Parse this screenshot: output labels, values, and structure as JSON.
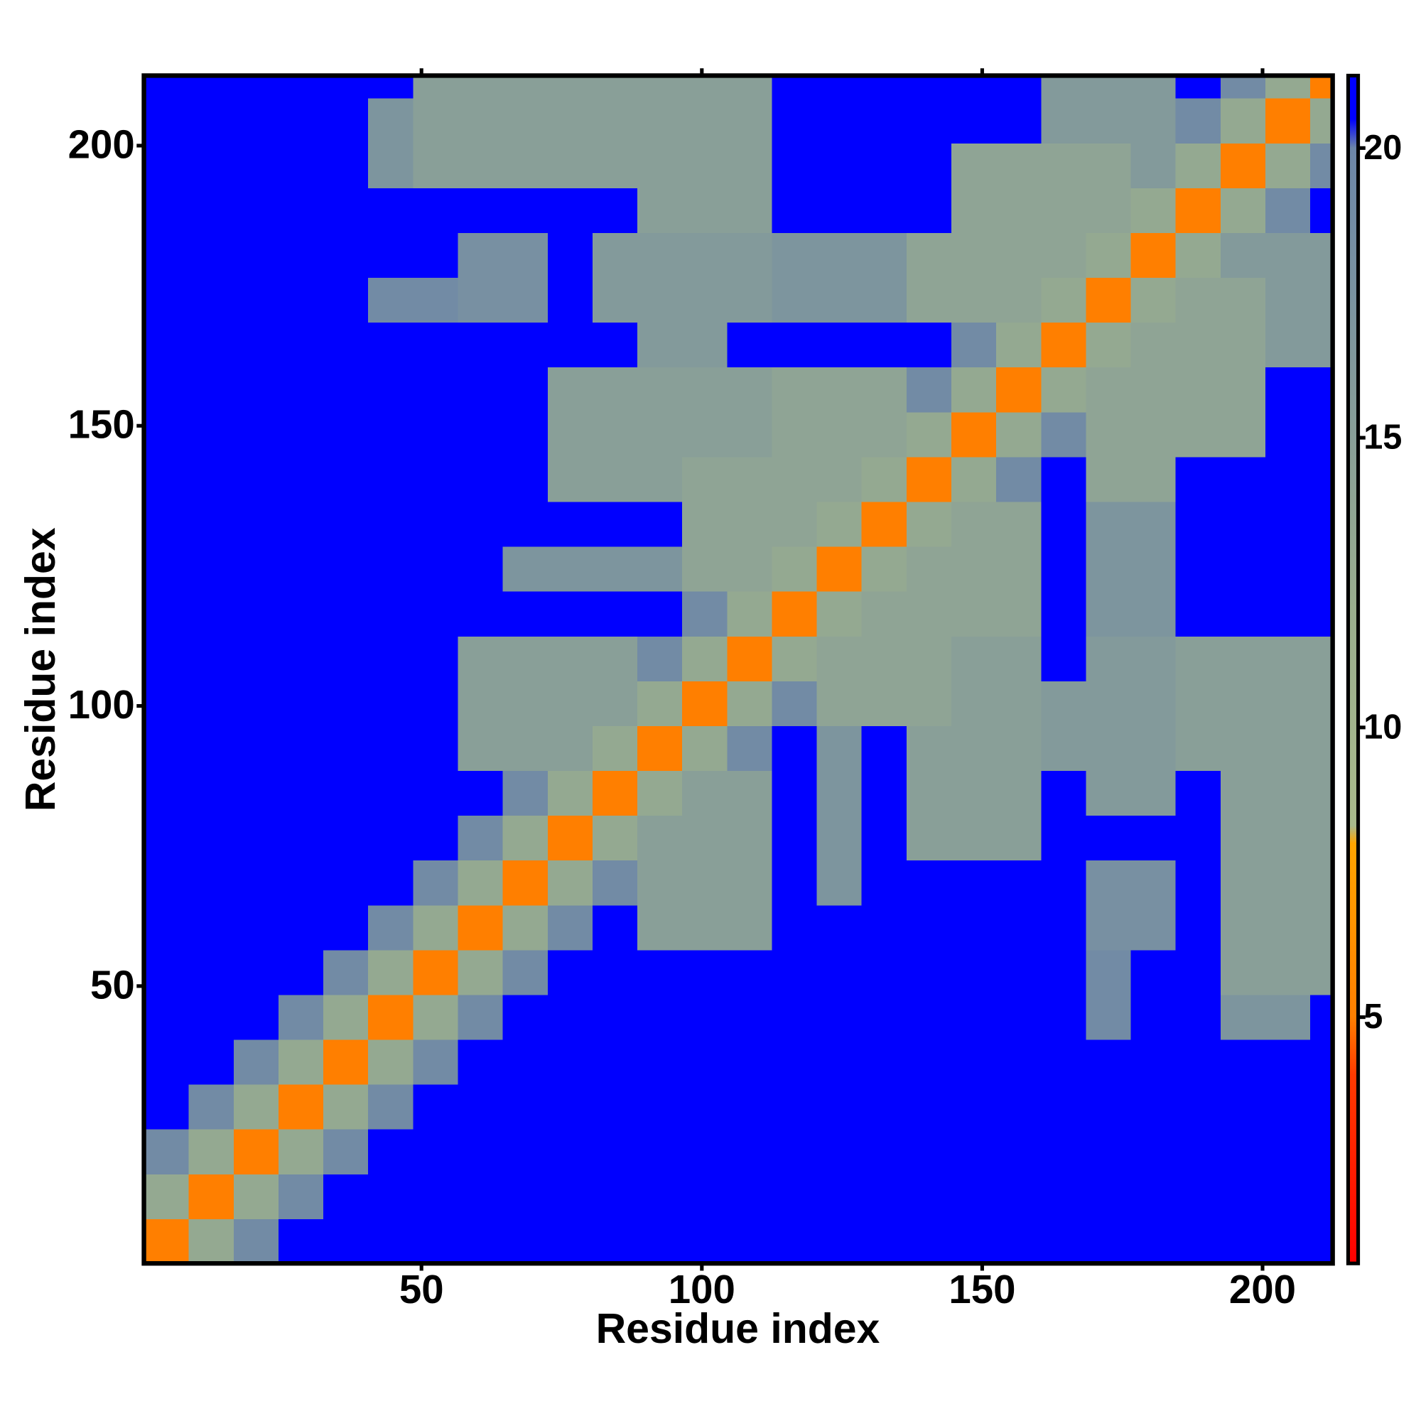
{
  "chart_data": {
    "type": "heatmap",
    "xlabel": "Residue index",
    "ylabel": "Residue index",
    "x_bins": [
      0.5,
      8.5,
      16.5,
      24.5,
      32.5,
      40.5,
      48.5,
      56.5,
      64.5,
      72.5,
      80.5,
      88.5,
      96.5,
      104.5,
      112.5,
      120.5,
      128.5,
      136.5,
      144.5,
      152.5,
      160.5,
      168.5,
      176.5,
      184.5,
      192.5,
      200.5,
      208.5,
      212.5
    ],
    "y_bins": [
      0.5,
      8.5,
      16.5,
      24.5,
      32.5,
      40.5,
      48.5,
      56.5,
      64.5,
      72.5,
      80.5,
      88.5,
      96.5,
      104.5,
      112.5,
      120.5,
      128.5,
      136.5,
      144.5,
      152.5,
      160.5,
      168.5,
      176.5,
      184.5,
      192.5,
      200.5,
      208.5,
      212.5
    ],
    "values": [
      [
        5,
        13,
        19,
        21,
        21,
        21,
        21,
        21,
        21,
        21,
        21,
        21,
        21,
        21,
        21,
        21,
        21,
        21,
        21,
        21,
        21,
        21,
        21,
        21,
        21,
        21,
        21
      ],
      [
        13,
        5,
        13,
        19,
        21,
        21,
        21,
        21,
        21,
        21,
        21,
        21,
        21,
        21,
        21,
        21,
        21,
        21,
        21,
        21,
        21,
        21,
        21,
        21,
        21,
        21,
        21
      ],
      [
        19,
        13,
        5,
        13,
        19,
        21,
        21,
        21,
        21,
        21,
        21,
        21,
        21,
        21,
        21,
        21,
        21,
        21,
        21,
        21,
        21,
        21,
        21,
        21,
        21,
        21,
        21
      ],
      [
        21,
        19,
        13,
        5,
        13,
        19,
        21,
        21,
        21,
        21,
        21,
        21,
        21,
        21,
        21,
        21,
        21,
        21,
        21,
        21,
        21,
        21,
        21,
        21,
        21,
        21,
        21
      ],
      [
        21,
        21,
        19,
        13,
        5,
        13,
        19,
        21,
        21,
        21,
        21,
        21,
        21,
        21,
        21,
        21,
        21,
        21,
        21,
        21,
        21,
        21,
        21,
        21,
        21,
        21,
        21
      ],
      [
        21,
        21,
        21,
        19,
        13,
        5,
        13,
        19,
        21,
        21,
        21,
        21,
        21,
        21,
        21,
        21,
        21,
        21,
        21,
        21,
        21,
        19,
        21,
        21,
        17,
        17,
        21
      ],
      [
        21,
        21,
        21,
        21,
        19,
        13,
        5,
        13,
        19,
        21,
        21,
        21,
        21,
        21,
        21,
        21,
        21,
        21,
        21,
        21,
        21,
        19,
        21,
        21,
        15,
        15,
        15
      ],
      [
        21,
        21,
        21,
        21,
        21,
        19,
        13,
        5,
        13,
        19,
        21,
        15,
        15,
        15,
        21,
        21,
        21,
        21,
        21,
        21,
        21,
        18,
        18,
        21,
        15,
        15,
        15
      ],
      [
        21,
        21,
        21,
        21,
        21,
        21,
        19,
        13,
        5,
        13,
        19,
        15,
        15,
        15,
        21,
        17,
        21,
        21,
        21,
        21,
        21,
        18,
        18,
        21,
        15,
        15,
        15
      ],
      [
        21,
        21,
        21,
        21,
        21,
        21,
        21,
        19,
        13,
        5,
        13,
        15,
        15,
        15,
        21,
        17,
        21,
        15,
        15,
        15,
        21,
        21,
        21,
        21,
        15,
        15,
        15
      ],
      [
        21,
        21,
        21,
        21,
        21,
        21,
        21,
        21,
        19,
        13,
        5,
        13,
        15,
        15,
        21,
        17,
        21,
        15,
        15,
        15,
        21,
        16,
        16,
        21,
        15,
        15,
        15
      ],
      [
        21,
        21,
        21,
        21,
        21,
        21,
        21,
        15,
        15,
        15,
        13,
        5,
        13,
        19,
        21,
        17,
        21,
        15,
        15,
        15,
        16,
        16,
        16,
        15,
        15,
        15,
        15
      ],
      [
        21,
        21,
        21,
        21,
        21,
        21,
        21,
        15,
        15,
        15,
        15,
        13,
        5,
        13,
        19,
        14,
        14,
        14,
        15,
        15,
        16,
        16,
        16,
        15,
        15,
        15,
        15
      ],
      [
        21,
        21,
        21,
        21,
        21,
        21,
        21,
        15,
        15,
        15,
        15,
        19,
        13,
        5,
        13,
        14,
        14,
        14,
        15,
        15,
        21,
        16,
        16,
        15,
        15,
        15,
        15
      ],
      [
        21,
        21,
        21,
        21,
        21,
        21,
        21,
        21,
        21,
        21,
        21,
        21,
        19,
        13,
        5,
        13,
        14,
        14,
        14,
        14,
        21,
        17,
        17,
        21,
        21,
        21,
        21
      ],
      [
        21,
        21,
        21,
        21,
        21,
        21,
        21,
        21,
        17,
        17,
        17,
        17,
        14,
        14,
        13,
        5,
        13,
        14,
        14,
        14,
        21,
        17,
        17,
        21,
        21,
        21,
        21
      ],
      [
        21,
        21,
        21,
        21,
        21,
        21,
        21,
        21,
        21,
        21,
        21,
        21,
        14,
        14,
        14,
        13,
        5,
        13,
        14,
        14,
        21,
        17,
        17,
        21,
        21,
        21,
        21
      ],
      [
        21,
        21,
        21,
        21,
        21,
        21,
        21,
        21,
        21,
        15,
        15,
        15,
        14,
        14,
        14,
        14,
        13,
        5,
        13,
        19,
        21,
        14,
        14,
        21,
        21,
        21,
        21
      ],
      [
        21,
        21,
        21,
        21,
        21,
        21,
        21,
        21,
        21,
        15,
        15,
        15,
        15,
        15,
        14,
        14,
        14,
        13,
        5,
        13,
        19,
        14,
        14,
        14,
        14,
        21,
        21
      ],
      [
        21,
        21,
        21,
        21,
        21,
        21,
        21,
        21,
        21,
        15,
        15,
        15,
        15,
        15,
        14,
        14,
        14,
        19,
        13,
        5,
        13,
        14,
        14,
        14,
        14,
        21,
        21
      ],
      [
        21,
        21,
        21,
        21,
        21,
        21,
        21,
        21,
        21,
        21,
        21,
        16,
        16,
        21,
        21,
        21,
        21,
        21,
        19,
        13,
        5,
        13,
        14,
        14,
        14,
        16,
        16
      ],
      [
        21,
        21,
        21,
        21,
        21,
        19,
        19,
        18,
        18,
        21,
        16,
        16,
        16,
        16,
        17,
        17,
        17,
        14,
        14,
        14,
        13,
        5,
        13,
        14,
        14,
        16,
        16
      ],
      [
        21,
        21,
        21,
        21,
        21,
        21,
        21,
        18,
        18,
        21,
        16,
        16,
        16,
        16,
        17,
        17,
        17,
        14,
        14,
        14,
        14,
        13,
        5,
        13,
        16,
        16,
        16
      ],
      [
        21,
        21,
        21,
        21,
        21,
        21,
        21,
        21,
        21,
        21,
        21,
        15,
        15,
        15,
        21,
        21,
        21,
        21,
        14,
        14,
        14,
        14,
        13,
        5,
        13,
        19,
        21
      ],
      [
        21,
        21,
        21,
        21,
        21,
        17,
        15,
        15,
        15,
        15,
        15,
        15,
        15,
        15,
        21,
        21,
        21,
        21,
        14,
        14,
        14,
        14,
        16,
        13,
        5,
        13,
        19
      ],
      [
        21,
        21,
        21,
        21,
        21,
        17,
        15,
        15,
        15,
        15,
        15,
        15,
        15,
        15,
        21,
        21,
        21,
        21,
        21,
        21,
        16,
        16,
        16,
        19,
        13,
        5,
        13
      ],
      [
        21,
        21,
        21,
        21,
        21,
        21,
        15,
        15,
        15,
        15,
        15,
        15,
        15,
        15,
        21,
        21,
        21,
        21,
        21,
        21,
        16,
        16,
        16,
        21,
        19,
        13,
        5
      ]
    ],
    "xlim": [
      0.5,
      212.5
    ],
    "ylim": [
      0.5,
      212.5
    ],
    "xticks": [
      50,
      100,
      150,
      200
    ],
    "yticks": [
      50,
      100,
      150,
      200
    ],
    "zlim": [
      0.75,
      21.25
    ],
    "zticks": [
      5,
      10,
      15,
      20
    ],
    "colorscale": [
      [
        0.75,
        "#ff0000"
      ],
      [
        4,
        "#ff3a00"
      ],
      [
        5,
        "#ff7f00"
      ],
      [
        8,
        "#ffa500"
      ],
      [
        8.3,
        "#a9ba8c"
      ],
      [
        12,
        "#9aae8e"
      ],
      [
        20,
        "#6c86a8"
      ],
      [
        20.5,
        "#0000ff"
      ],
      [
        21.25,
        "#0000ff"
      ]
    ]
  }
}
